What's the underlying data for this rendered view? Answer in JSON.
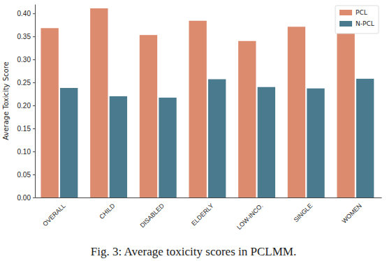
{
  "chart_data": {
    "type": "bar",
    "title": "Fig. 3: Average toxicity scores in PCLMM.",
    "y_label": "Average Toxicity Score",
    "categories": [
      "OVERALL",
      "CHILD",
      "DISABLED",
      "ELDERLY",
      "LOW-INCO.",
      "SINGLE",
      "WOMEN"
    ],
    "series": [
      {
        "name": "PCL",
        "color": "#dc8b6f",
        "values": [
          0.368,
          0.411,
          0.353,
          0.384,
          0.34,
          0.371,
          0.357
        ]
      },
      {
        "name": "N-PCL",
        "color": "#4a7a8d",
        "values": [
          0.238,
          0.22,
          0.217,
          0.257,
          0.24,
          0.237,
          0.258
        ]
      }
    ],
    "ylim": [
      0,
      0.42
    ],
    "yticks": [
      {
        "value": 0,
        "label": "0.00"
      },
      {
        "value": 0.05,
        "label": "0.05"
      },
      {
        "value": 0.1,
        "label": "0.10"
      },
      {
        "value": 0.15,
        "label": "0.15"
      },
      {
        "value": 0.2,
        "label": "0.20"
      },
      {
        "value": 0.25,
        "label": "0.25"
      },
      {
        "value": 0.3,
        "label": "0.30"
      },
      {
        "value": 0.35,
        "label": "0.35"
      },
      {
        "value": 0.4,
        "label": "0.40"
      }
    ],
    "legend": "upper right",
    "grid": false
  }
}
